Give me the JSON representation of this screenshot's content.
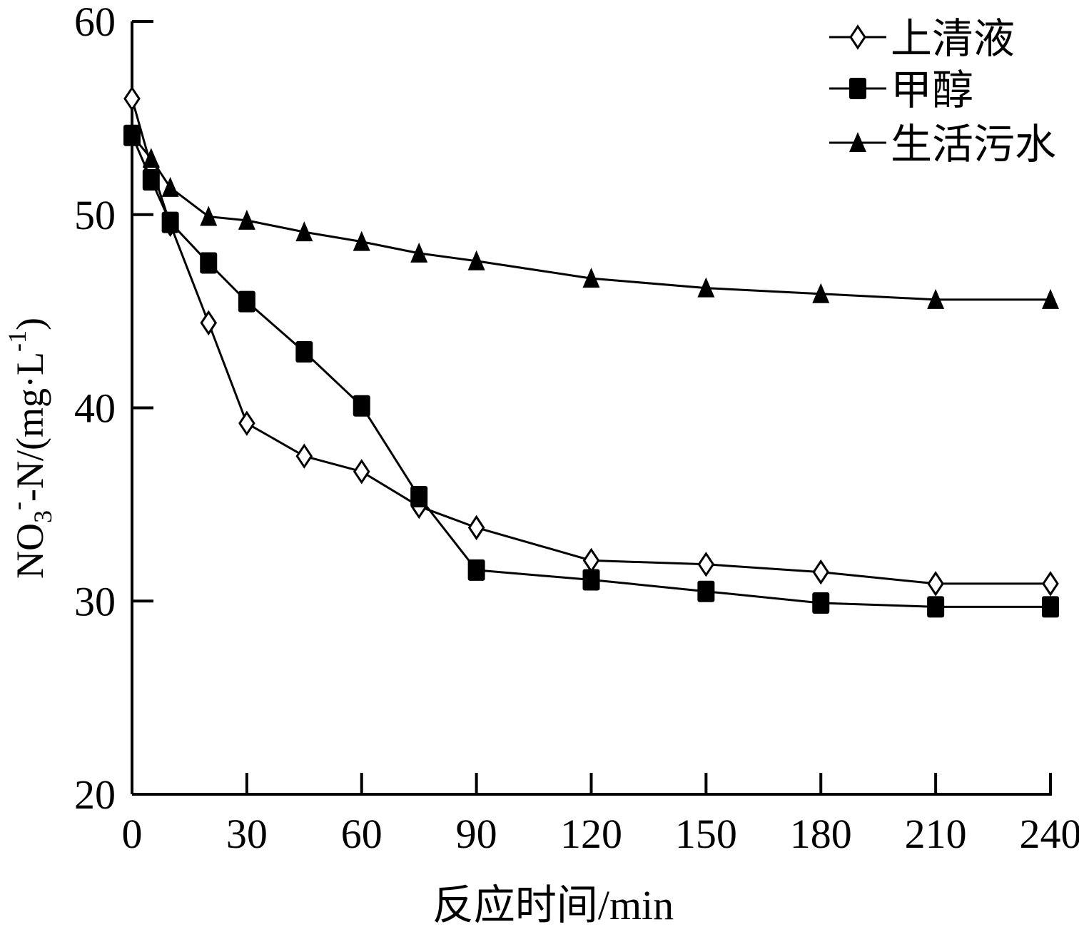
{
  "chart_data": {
    "type": "line",
    "title": "",
    "xlabel": "反应时间/min",
    "ylabel": {
      "prefix": "NO",
      "sub": "3",
      "sup": "-",
      "mid": "-N/(mg·L",
      "sup2": "-1",
      "suffix": ")"
    },
    "xlim": [
      0,
      240
    ],
    "ylim": [
      20,
      60
    ],
    "xticks": [
      0,
      30,
      60,
      90,
      120,
      150,
      180,
      210,
      240
    ],
    "yticks": [
      20,
      30,
      40,
      50,
      60
    ],
    "grid": false,
    "legend_position": "top-right",
    "series": [
      {
        "name": "上清液",
        "marker": "diamond-open",
        "x": [
          0,
          5,
          10,
          20,
          30,
          45,
          60,
          75,
          90,
          120,
          150,
          180,
          210,
          240
        ],
        "y": [
          56.0,
          52.5,
          49.5,
          44.4,
          39.2,
          37.5,
          36.7,
          34.9,
          33.8,
          32.1,
          31.9,
          31.5,
          30.9,
          30.9
        ]
      },
      {
        "name": "甲醇",
        "marker": "square-filled",
        "x": [
          0,
          5,
          10,
          20,
          30,
          45,
          60,
          75,
          90,
          120,
          150,
          180,
          210,
          240
        ],
        "y": [
          54.1,
          51.8,
          49.6,
          47.5,
          45.5,
          42.9,
          40.1,
          35.4,
          31.6,
          31.1,
          30.5,
          29.9,
          29.7,
          29.7
        ]
      },
      {
        "name": "生活污水",
        "marker": "triangle-filled",
        "x": [
          0,
          5,
          10,
          20,
          30,
          45,
          60,
          75,
          90,
          120,
          150,
          180,
          210,
          240
        ],
        "y": [
          54.1,
          52.9,
          51.4,
          49.9,
          49.7,
          49.1,
          48.6,
          48.0,
          47.6,
          46.7,
          46.2,
          45.9,
          45.6,
          45.6
        ]
      }
    ]
  }
}
